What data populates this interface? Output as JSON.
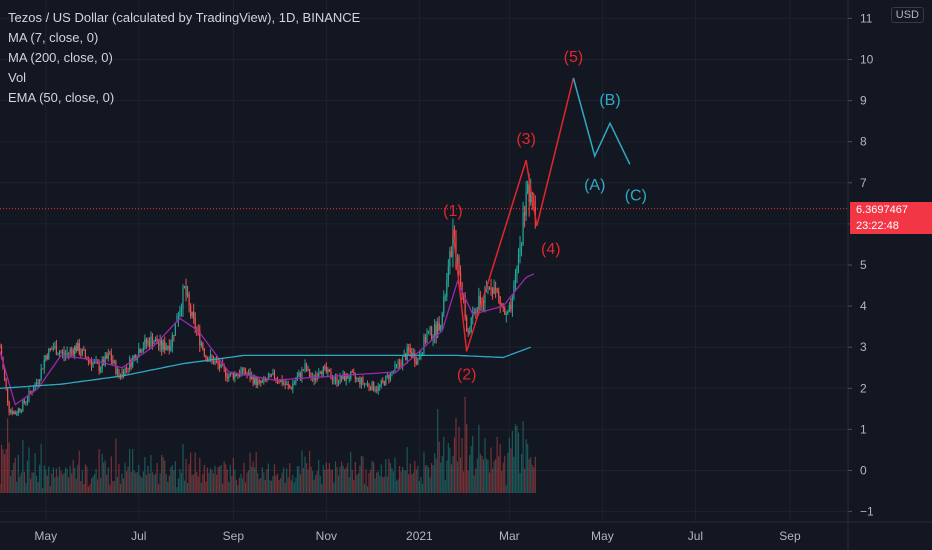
{
  "legend": {
    "title": "Tezos / US Dollar (calculated by TradingView), 1D, BINANCE",
    "lines": [
      "MA (7, close, 0)",
      "MA (200, close, 0)",
      "Vol",
      "EMA (50, close, 0)"
    ]
  },
  "currency": "USD",
  "price_label": {
    "price": "6.3697467",
    "countdown": "23:22:48"
  },
  "colors": {
    "background": "#131722",
    "grid": "#1e222d",
    "axis_text": "#b2b5be",
    "up": "#26a69a",
    "down": "#ef5350",
    "ma7": "#9c27b0",
    "ema50": "#2fa9c2",
    "wave_red": "#e3262d",
    "wave_teal": "#2fa9c2",
    "price_line": "#f23645"
  },
  "chart_data": {
    "type": "candlestick",
    "y_ticks": [
      "11",
      "10",
      "9",
      "8",
      "7",
      "6",
      "5",
      "4",
      "3",
      "2",
      "1",
      "0",
      "−1"
    ],
    "y_tick_values": [
      11,
      10,
      9,
      8,
      7,
      6,
      5,
      4,
      3,
      2,
      1,
      0,
      -1
    ],
    "ylim": [
      -1.3,
      11.5
    ],
    "x_ticks": [
      "May",
      "Jul",
      "Sep",
      "Nov",
      "2021",
      "Mar",
      "May",
      "Jul",
      "Sep"
    ],
    "x_tick_days": [
      30,
      91,
      153,
      214,
      275,
      334,
      395,
      456,
      518
    ],
    "current_price": 6.3697,
    "price_path": [
      [
        0,
        3.0
      ],
      [
        3,
        2.2
      ],
      [
        6,
        1.5
      ],
      [
        10,
        1.4
      ],
      [
        15,
        1.6
      ],
      [
        20,
        1.9
      ],
      [
        25,
        2.2
      ],
      [
        30,
        2.8
      ],
      [
        35,
        3.0
      ],
      [
        42,
        2.8
      ],
      [
        50,
        3.0
      ],
      [
        58,
        2.7
      ],
      [
        65,
        2.5
      ],
      [
        72,
        2.8
      ],
      [
        78,
        2.3
      ],
      [
        85,
        2.6
      ],
      [
        92,
        3.0
      ],
      [
        100,
        3.2
      ],
      [
        106,
        3.0
      ],
      [
        112,
        3.1
      ],
      [
        118,
        4.0
      ],
      [
        121,
        4.4
      ],
      [
        125,
        3.8
      ],
      [
        130,
        3.3
      ],
      [
        135,
        2.8
      ],
      [
        142,
        2.6
      ],
      [
        150,
        2.3
      ],
      [
        160,
        2.4
      ],
      [
        170,
        2.1
      ],
      [
        180,
        2.3
      ],
      [
        190,
        2.0
      ],
      [
        196,
        2.3
      ],
      [
        200,
        2.5
      ],
      [
        205,
        2.2
      ],
      [
        210,
        2.5
      ],
      [
        220,
        2.2
      ],
      [
        230,
        2.3
      ],
      [
        240,
        2.1
      ],
      [
        248,
        2.0
      ],
      [
        255,
        2.3
      ],
      [
        262,
        2.6
      ],
      [
        268,
        2.9
      ],
      [
        274,
        2.7
      ],
      [
        280,
        3.3
      ],
      [
        286,
        3.4
      ],
      [
        290,
        3.8
      ],
      [
        294,
        4.8
      ],
      [
        297,
        5.7
      ],
      [
        300,
        5.0
      ],
      [
        304,
        4.2
      ],
      [
        306,
        3.3
      ],
      [
        309,
        3.6
      ],
      [
        313,
        4.0
      ],
      [
        318,
        4.2
      ],
      [
        322,
        4.6
      ],
      [
        327,
        4.2
      ],
      [
        332,
        3.7
      ],
      [
        336,
        4.0
      ],
      [
        339,
        5.0
      ],
      [
        342,
        5.7
      ],
      [
        345,
        6.9
      ],
      [
        348,
        6.5
      ],
      [
        351,
        6.37
      ]
    ],
    "ma200_path": [
      [
        0,
        2.0
      ],
      [
        40,
        2.1
      ],
      [
        80,
        2.3
      ],
      [
        120,
        2.6
      ],
      [
        160,
        2.8
      ],
      [
        200,
        2.8
      ],
      [
        240,
        2.8
      ],
      [
        270,
        2.8
      ],
      [
        300,
        2.8
      ],
      [
        330,
        2.75
      ],
      [
        348,
        3.0
      ]
    ],
    "ma7_path": [
      [
        0,
        2.9
      ],
      [
        10,
        1.6
      ],
      [
        25,
        2.0
      ],
      [
        40,
        2.8
      ],
      [
        60,
        2.7
      ],
      [
        80,
        2.5
      ],
      [
        100,
        3.0
      ],
      [
        118,
        3.7
      ],
      [
        130,
        3.4
      ],
      [
        150,
        2.4
      ],
      [
        180,
        2.2
      ],
      [
        220,
        2.3
      ],
      [
        260,
        2.4
      ],
      [
        290,
        3.4
      ],
      [
        300,
        4.6
      ],
      [
        310,
        3.8
      ],
      [
        330,
        4.0
      ],
      [
        345,
        4.7
      ],
      [
        351,
        4.8
      ]
    ],
    "elliott_impulse": [
      {
        "label": "(1)",
        "day": 297,
        "price": 5.85
      },
      {
        "label": "(2)",
        "day": 306,
        "price": 2.9
      },
      {
        "label": "(3)",
        "day": 345,
        "price": 7.55
      },
      {
        "label": "(4)",
        "day": 352,
        "price": 5.95
      },
      {
        "label": "(5)",
        "day": 376,
        "price": 9.55
      }
    ],
    "elliott_correction": [
      {
        "label": "(A)",
        "day": 390,
        "price": 7.65
      },
      {
        "label": "(B)",
        "day": 400,
        "price": 8.45
      },
      {
        "label": "(C)",
        "day": 413,
        "price": 7.45
      }
    ]
  }
}
